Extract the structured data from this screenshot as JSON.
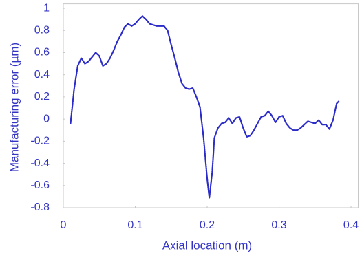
{
  "chart_data": {
    "type": "line",
    "x_label": "Axial location (m)",
    "y_label": "Manufacturing error (µm)",
    "x": [
      0.01,
      0.015,
      0.02,
      0.025,
      0.03,
      0.035,
      0.04,
      0.045,
      0.05,
      0.055,
      0.06,
      0.065,
      0.07,
      0.075,
      0.08,
      0.085,
      0.09,
      0.095,
      0.1,
      0.105,
      0.11,
      0.115,
      0.12,
      0.125,
      0.13,
      0.135,
      0.14,
      0.145,
      0.15,
      0.155,
      0.16,
      0.165,
      0.17,
      0.175,
      0.18,
      0.185,
      0.19,
      0.195,
      0.2,
      0.203,
      0.207,
      0.21,
      0.215,
      0.22,
      0.225,
      0.23,
      0.235,
      0.24,
      0.245,
      0.25,
      0.255,
      0.26,
      0.265,
      0.27,
      0.275,
      0.28,
      0.285,
      0.29,
      0.295,
      0.3,
      0.305,
      0.31,
      0.315,
      0.32,
      0.325,
      0.33,
      0.335,
      0.34,
      0.345,
      0.35,
      0.355,
      0.36,
      0.365,
      0.37,
      0.375,
      0.38,
      0.383
    ],
    "series": [
      {
        "color": "#2b2bc8",
        "values": [
          -0.04,
          0.27,
          0.48,
          0.55,
          0.5,
          0.52,
          0.56,
          0.6,
          0.57,
          0.48,
          0.5,
          0.55,
          0.62,
          0.7,
          0.76,
          0.83,
          0.86,
          0.84,
          0.86,
          0.9,
          0.93,
          0.9,
          0.86,
          0.85,
          0.84,
          0.84,
          0.84,
          0.8,
          0.67,
          0.55,
          0.42,
          0.32,
          0.28,
          0.27,
          0.28,
          0.2,
          0.11,
          -0.17,
          -0.54,
          -0.71,
          -0.48,
          -0.17,
          -0.08,
          -0.04,
          -0.03,
          0.01,
          -0.04,
          0.01,
          0.02,
          -0.08,
          -0.16,
          -0.15,
          -0.1,
          -0.04,
          0.02,
          0.03,
          0.07,
          0.03,
          -0.03,
          0.02,
          0.03,
          -0.04,
          -0.08,
          -0.1,
          -0.1,
          -0.08,
          -0.05,
          -0.02,
          -0.03,
          -0.04,
          -0.01,
          -0.05,
          -0.05,
          -0.09,
          -0.01,
          0.14,
          0.16
        ]
      }
    ],
    "xlim": [
      0,
      0.41
    ],
    "ylim": [
      -0.8,
      1.04
    ],
    "xticks": [
      0,
      0.1,
      0.2,
      0.3,
      0.4
    ],
    "yticks": [
      -0.8,
      -0.6,
      -0.4,
      -0.2,
      0,
      0.2,
      0.4,
      0.6,
      0.8,
      1
    ]
  }
}
